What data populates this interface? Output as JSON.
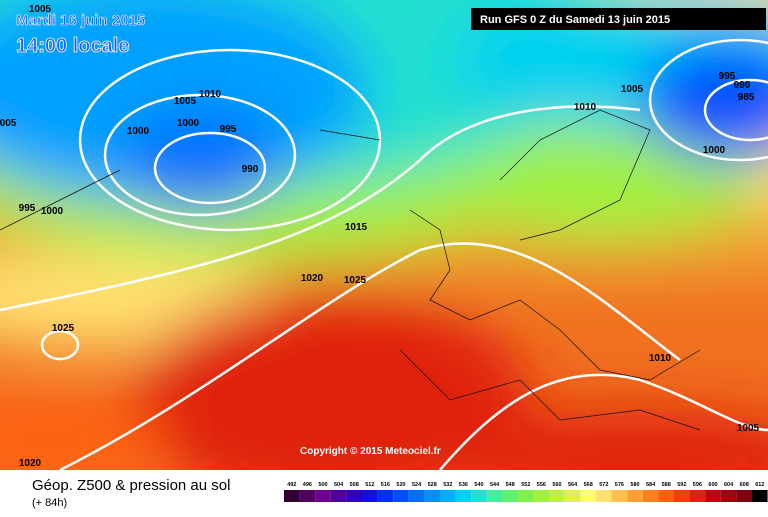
{
  "header": {
    "date": "Mardi 16 juin 2015",
    "time": "14:00 locale",
    "run": "Run GFS 0 Z du Samedi 13 juin 2015"
  },
  "copyright": "Copyright © 2015 Meteociel.fr",
  "footer": {
    "title": "Géop. Z500 & pression au sol",
    "lead": "(+ 84h)"
  },
  "isobar_labels": [
    "1005",
    "1005",
    "1010",
    "005",
    "1000",
    "1000",
    "995",
    "990",
    "995",
    "1000",
    "1015",
    "1020",
    "1025",
    "1025",
    "1020",
    "1010",
    "1005",
    "995",
    "990",
    "985",
    "1000",
    "1010",
    "1005"
  ],
  "scale": {
    "values": [
      492,
      496,
      500,
      504,
      508,
      512,
      516,
      520,
      524,
      528,
      532,
      536,
      540,
      544,
      548,
      552,
      556,
      560,
      564,
      568,
      572,
      576,
      580,
      584,
      588,
      592,
      596,
      600,
      604,
      608,
      612
    ],
    "colors": [
      "#300030",
      "#500060",
      "#700090",
      "#5000a0",
      "#3000c0",
      "#1010e0",
      "#0030f0",
      "#0050ff",
      "#0070ff",
      "#0090ff",
      "#00b0ff",
      "#00d0f0",
      "#20e0d0",
      "#40f0a0",
      "#60f070",
      "#80f050",
      "#a0f040",
      "#c0f040",
      "#e0f050",
      "#ffff70",
      "#ffe070",
      "#ffc050",
      "#ffa030",
      "#ff8020",
      "#ff6010",
      "#f04010",
      "#e02010",
      "#c00010",
      "#a00010",
      "#800010",
      "#000000"
    ]
  }
}
